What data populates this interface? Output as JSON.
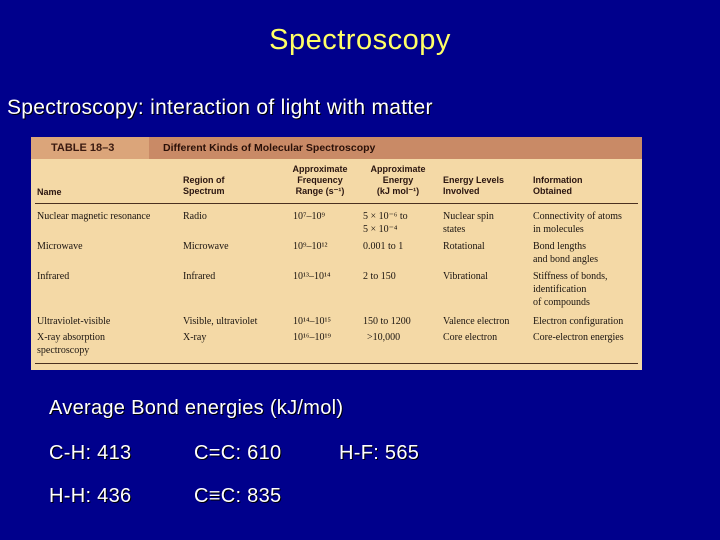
{
  "slide": {
    "title": "Spectroscopy",
    "subtitle": "Spectroscopy: interaction of light with matter"
  },
  "table": {
    "number": "TABLE 18–3",
    "caption": "Different Kinds of Molecular Spectroscopy",
    "columns": [
      "Name",
      "Region of\nSpectrum",
      "Approximate\nFrequency\nRange (s⁻¹)",
      "Approximate\nEnergy\n(kJ mol⁻¹)",
      "Energy Levels\nInvolved",
      "Information\nObtained"
    ],
    "rows": [
      {
        "name": "Nuclear magnetic resonance",
        "region": "Radio",
        "frequency": "10⁷–10⁹",
        "energy": "5 × 10⁻⁶ to\n5 × 10⁻⁴",
        "levels": "Nuclear spin\nstates",
        "info": "Connectivity of atoms\nin molecules"
      },
      {
        "name": "Microwave",
        "region": "Microwave",
        "frequency": "10⁹–10¹²",
        "energy": "0.001 to 1",
        "levels": "Rotational",
        "info": "Bond lengths\nand bond angles"
      },
      {
        "name": "Infrared",
        "region": "Infrared",
        "frequency": "10¹³–10¹⁴",
        "energy": "2 to 150",
        "levels": "Vibrational",
        "info": "Stiffness of bonds,\nidentification\nof compounds"
      },
      {
        "name": "Ultraviolet-visible",
        "region": "Visible, ultraviolet",
        "frequency": "10¹⁴–10¹⁵",
        "energy": "150 to 1200",
        "levels": "Valence electron",
        "info": "Electron configuration"
      },
      {
        "name": "X-ray absorption\nspectroscopy",
        "region": "X-ray",
        "frequency": "10¹⁶–10¹⁹",
        "energy": ">10,000",
        "levels": "Core electron",
        "info": "Core-electron energies"
      }
    ]
  },
  "bonds": {
    "heading": "Average Bond energies (kJ/mol)",
    "items": [
      "C-H: 413",
      "C=C: 610",
      "H-F: 565",
      "H-H: 436",
      "C≡C: 835"
    ]
  }
}
